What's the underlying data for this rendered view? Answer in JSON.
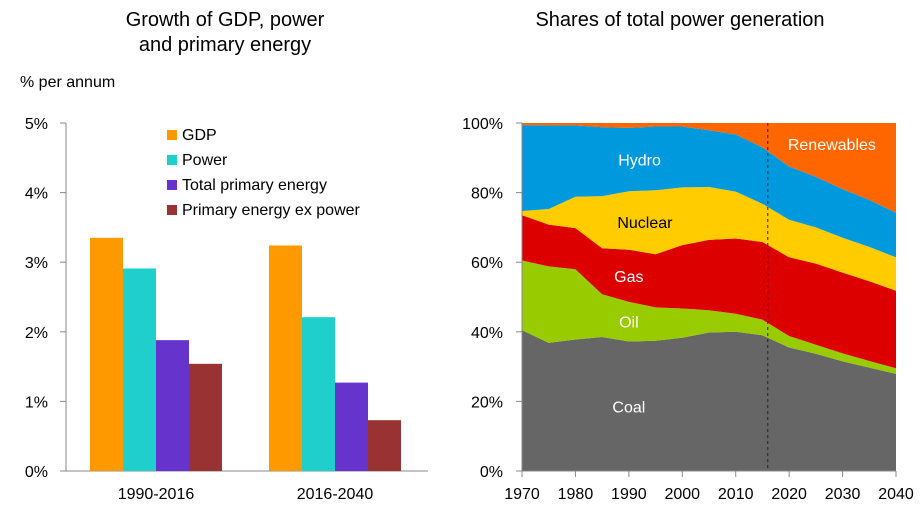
{
  "chart_data": [
    {
      "type": "bar",
      "title": "Growth of GDP, power and primary energy",
      "title_lines": [
        "Growth of GDP, power",
        "and primary energy"
      ],
      "ylabel": "% per annum",
      "ylim": [
        0,
        5
      ],
      "y_ticks": [
        "0%",
        "1%",
        "2%",
        "3%",
        "4%",
        "5%"
      ],
      "categories": [
        "1990-2016",
        "2016-2040"
      ],
      "legend_position": "top-right",
      "series": [
        {
          "name": "GDP",
          "color": "#FF9900",
          "values": [
            3.35,
            3.24
          ]
        },
        {
          "name": "Power",
          "color": "#1ECFCB",
          "values": [
            2.91,
            2.21
          ]
        },
        {
          "name": "Total primary energy",
          "color": "#6633CC",
          "values": [
            1.88,
            1.27
          ]
        },
        {
          "name": "Primary energy ex power",
          "color": "#993333",
          "values": [
            1.54,
            0.73
          ]
        }
      ]
    },
    {
      "type": "area",
      "stacked": true,
      "title": "Shares of total power generation",
      "ylim": [
        0,
        100
      ],
      "y_ticks": [
        "0%",
        "20%",
        "40%",
        "60%",
        "80%",
        "100%"
      ],
      "x_ticks": [
        "1970",
        "1980",
        "1990",
        "2000",
        "2010",
        "2020",
        "2030",
        "2040"
      ],
      "xlim": [
        1970,
        2040
      ],
      "divider_year": 2016,
      "x": [
        1970,
        1975,
        1980,
        1985,
        1990,
        1995,
        2000,
        2005,
        2010,
        2015,
        2020,
        2025,
        2030,
        2035,
        2040
      ],
      "series": [
        {
          "name": "Coal",
          "color": "#666666",
          "label_color": "#ffffff",
          "values": [
            40.5,
            36.8,
            37.8,
            38.5,
            37.2,
            37.4,
            38.3,
            39.8,
            40.0,
            39.0,
            35.5,
            33.7,
            31.5,
            29.7,
            27.9
          ]
        },
        {
          "name": "Oil",
          "color": "#99CC00",
          "label_color": "#ffffff",
          "values": [
            20.0,
            22.0,
            20.2,
            12.3,
            11.4,
            9.6,
            8.4,
            6.4,
            5.2,
            4.5,
            3.3,
            2.6,
            2.3,
            1.9,
            1.6
          ]
        },
        {
          "name": "Gas",
          "color": "#DD0000",
          "label_color": "#ffffff",
          "values": [
            13.0,
            12.0,
            11.8,
            13.2,
            15.0,
            15.3,
            18.2,
            20.2,
            21.6,
            22.3,
            22.6,
            23.3,
            23.2,
            22.9,
            22.3
          ]
        },
        {
          "name": "Nuclear",
          "color": "#FFCC00",
          "label_color": "#000000",
          "values": [
            1.2,
            4.5,
            9.0,
            15.0,
            16.8,
            18.4,
            16.6,
            15.2,
            13.5,
            11.0,
            10.8,
            10.4,
            10.0,
            9.9,
            9.6
          ]
        },
        {
          "name": "Hydro",
          "color": "#0099DD",
          "label_color": "#ffffff",
          "values": [
            24.7,
            24.0,
            20.5,
            19.8,
            18.2,
            18.3,
            17.5,
            16.3,
            16.4,
            16.2,
            15.3,
            14.5,
            14.0,
            13.5,
            12.8
          ]
        },
        {
          "name": "Renewables",
          "color": "#FF6600",
          "label_color": "#ffffff",
          "values": [
            0.6,
            0.7,
            0.7,
            1.2,
            1.4,
            1.0,
            1.0,
            2.1,
            3.3,
            7.0,
            12.5,
            15.5,
            19.0,
            22.1,
            25.8
          ]
        }
      ]
    }
  ]
}
